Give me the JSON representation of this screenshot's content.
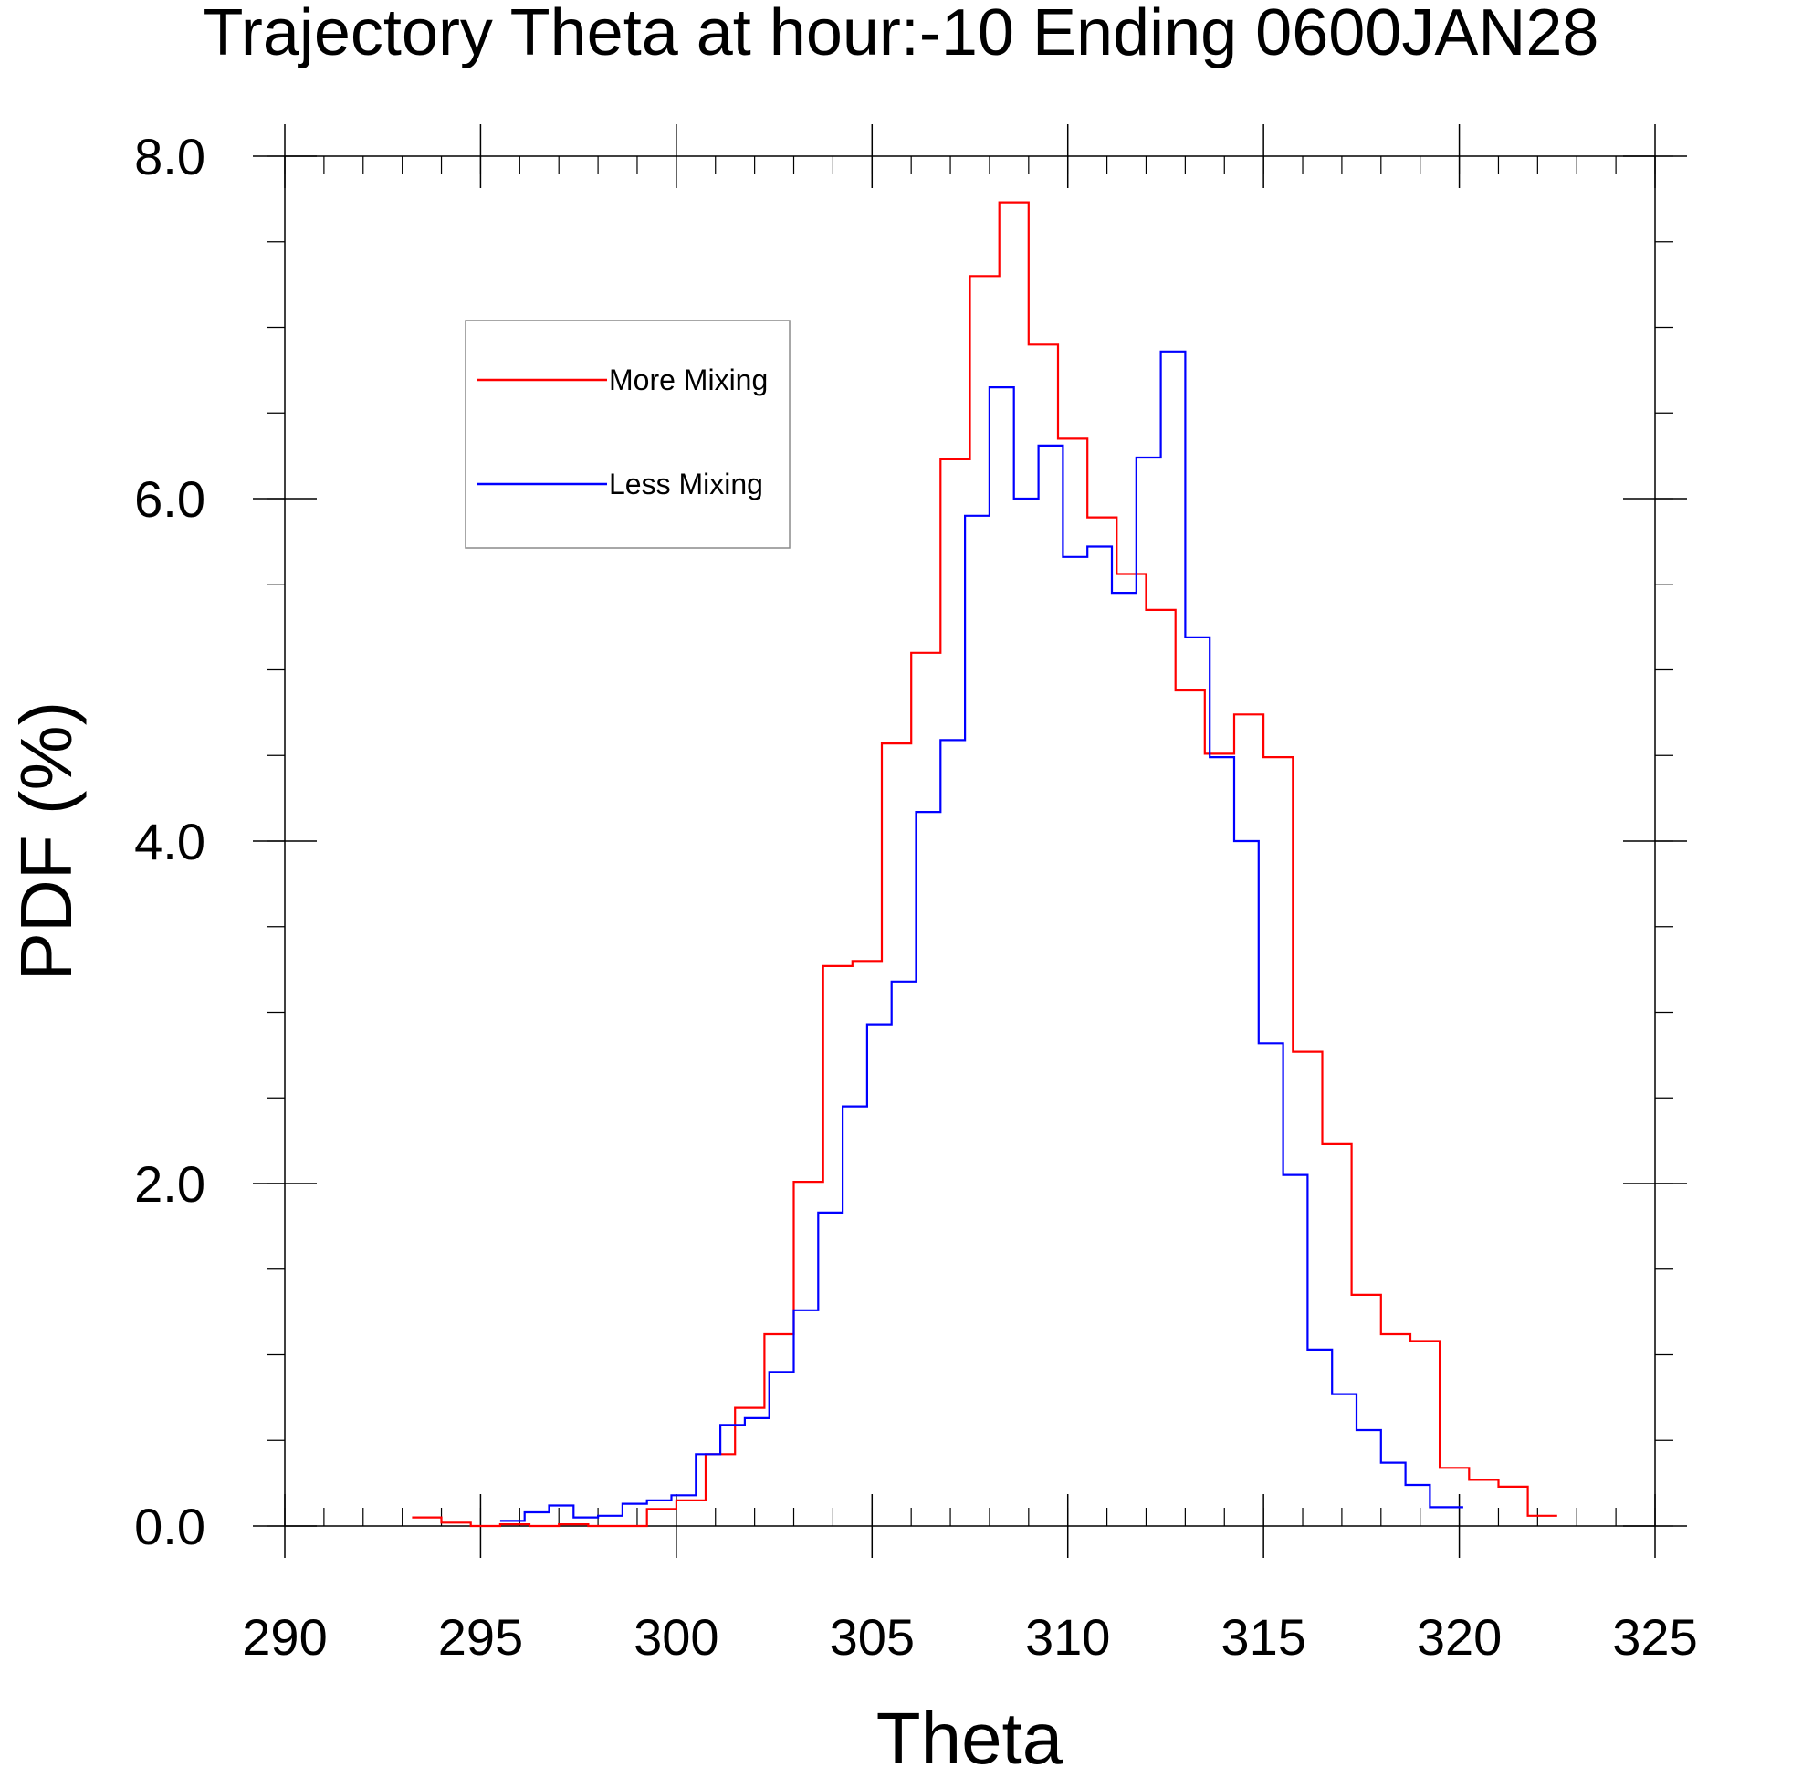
{
  "chart_data": {
    "type": "line",
    "title": "Trajectory Theta at hour:-10 Ending 0600JAN28",
    "xlabel": "Theta",
    "ylabel": "PDF (%)",
    "xlim": [
      290,
      325
    ],
    "ylim": [
      0,
      8
    ],
    "x_ticks": [
      290,
      295,
      300,
      305,
      310,
      315,
      320,
      325
    ],
    "x_tick_labels": [
      "290",
      "295",
      "300",
      "305",
      "310",
      "315",
      "320",
      "325"
    ],
    "y_ticks": [
      0,
      2,
      4,
      6,
      8
    ],
    "y_tick_labels": [
      "0.0",
      "2.0",
      "4.0",
      "6.0",
      "8.0"
    ],
    "x_minor_step": 1,
    "y_minor_step": 0.5,
    "grid": false,
    "legend_position": "top-left",
    "series": [
      {
        "name": "More Mixing",
        "color": "#ff0000",
        "step_edges": [
          293.25,
          294.0,
          294.75,
          295.5,
          296.25,
          297.0,
          297.75,
          298.5,
          299.25,
          300.0,
          300.75,
          301.5,
          302.25,
          303.0,
          303.75,
          304.5,
          305.25,
          306.0,
          306.75,
          307.5,
          308.25,
          309.0,
          309.75,
          310.5,
          311.25,
          312.0,
          312.75,
          313.5,
          314.25,
          315.0,
          315.75,
          316.5,
          317.25,
          318.0,
          318.75,
          319.5,
          320.25,
          321.0,
          321.75,
          322.5
        ],
        "values": [
          0.05,
          0.02,
          0.0,
          0.01,
          0.0,
          0.01,
          0.0,
          0.0,
          0.1,
          0.15,
          0.42,
          0.69,
          1.12,
          2.01,
          3.27,
          3.3,
          4.57,
          5.1,
          6.23,
          7.3,
          7.73,
          6.9,
          6.35,
          5.89,
          5.56,
          5.35,
          4.88,
          4.51,
          4.74,
          4.49,
          2.77,
          2.23,
          1.35,
          1.12,
          1.08,
          0.34,
          0.27,
          0.23,
          0.06
        ]
      },
      {
        "name": "Less Mixing",
        "color": "#0000ff",
        "step_edges": [
          295.5,
          296.125,
          296.75,
          297.375,
          298.0,
          298.625,
          299.25,
          299.875,
          300.5,
          301.125,
          301.75,
          302.375,
          303.0,
          303.625,
          304.25,
          304.875,
          305.5,
          306.125,
          306.75,
          307.375,
          308.0,
          308.625,
          309.25,
          309.875,
          310.5,
          311.125,
          311.75,
          312.375,
          313.0,
          313.625,
          314.25,
          314.875,
          315.5,
          316.125,
          316.75,
          317.375,
          318.0,
          318.625,
          319.25,
          319.875,
          320.1
        ],
        "values": [
          0.03,
          0.08,
          0.12,
          0.05,
          0.06,
          0.13,
          0.15,
          0.18,
          0.42,
          0.59,
          0.63,
          0.9,
          1.26,
          1.83,
          2.45,
          2.93,
          3.18,
          4.17,
          4.59,
          5.9,
          6.65,
          6.0,
          6.31,
          5.66,
          5.72,
          5.45,
          6.24,
          6.86,
          5.19,
          4.49,
          4.0,
          2.82,
          2.05,
          1.03,
          0.77,
          0.56,
          0.37,
          0.24,
          0.11,
          0.11
        ]
      }
    ]
  }
}
